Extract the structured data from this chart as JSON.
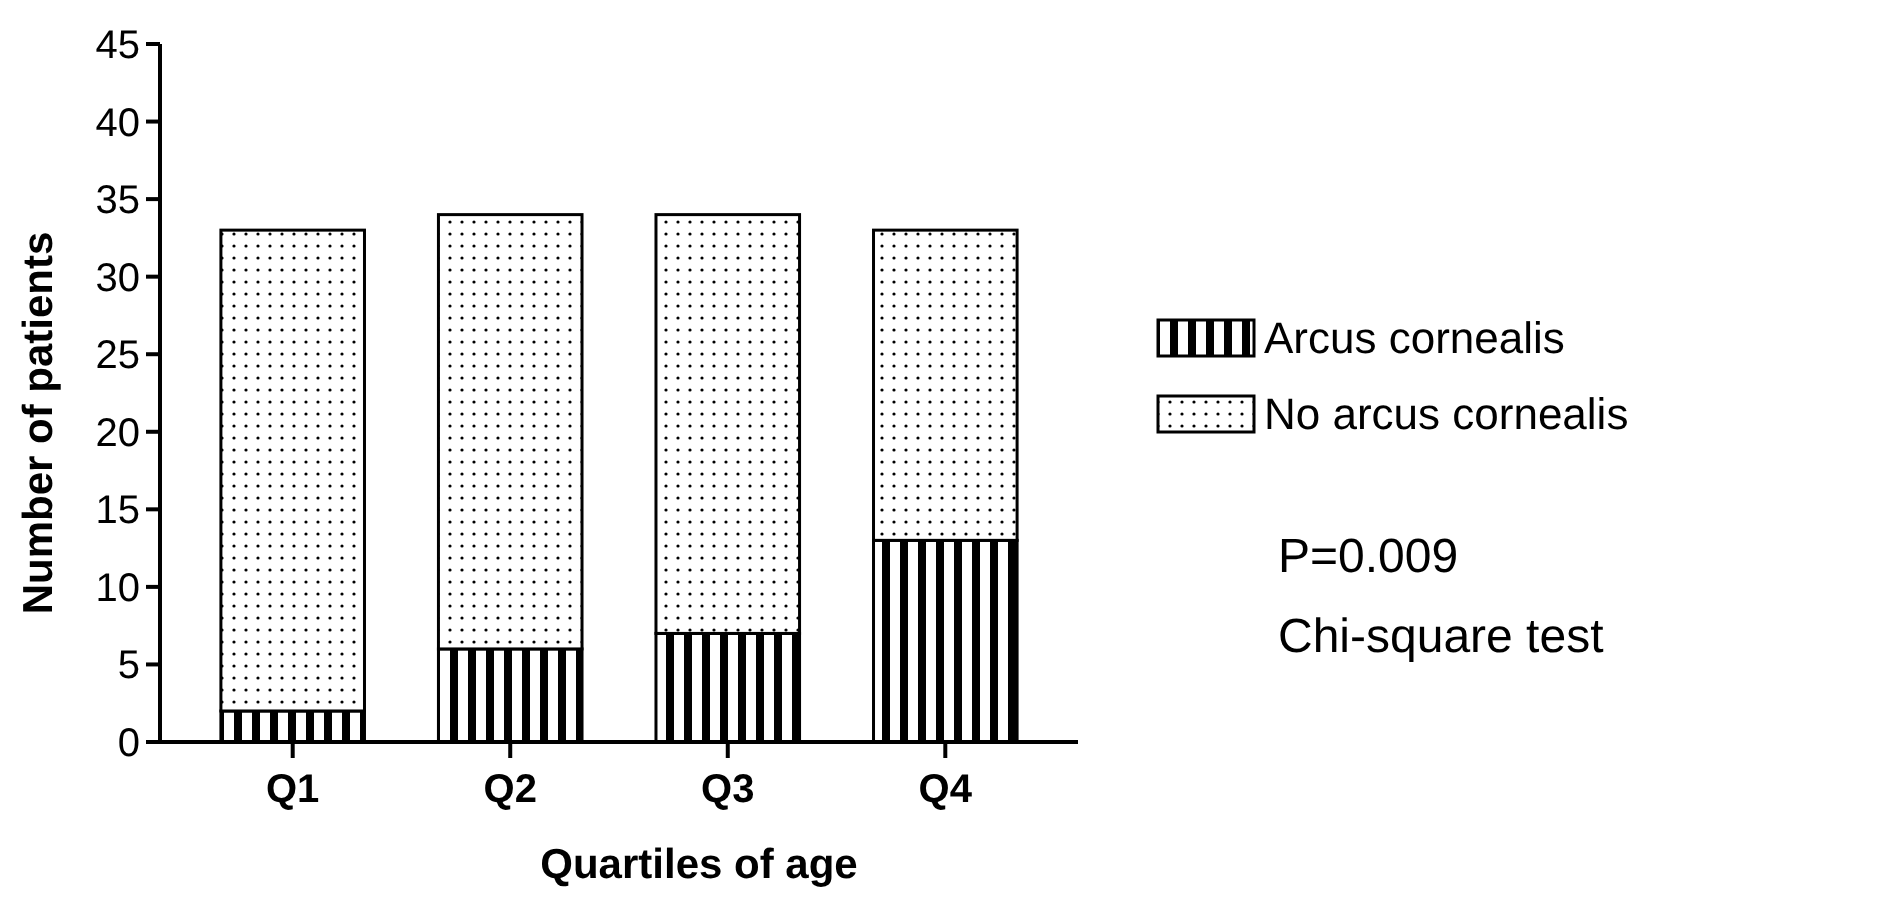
{
  "chart_data": {
    "type": "bar",
    "stacked": true,
    "xlabel": "Quartiles of age",
    "ylabel": "Number of patients",
    "categories": [
      "Q1",
      "Q2",
      "Q3",
      "Q4"
    ],
    "series": [
      {
        "name": "Arcus cornealis",
        "color": "#000000",
        "values": [
          2,
          6,
          7,
          13
        ]
      },
      {
        "name": "No arcus cornealis",
        "color": "#000000",
        "values": [
          31,
          28,
          27,
          20
        ]
      }
    ],
    "ylim": [
      0,
      45
    ],
    "yticks": [
      0,
      5,
      10,
      15,
      20,
      25,
      30,
      35,
      40,
      45
    ],
    "grid": false,
    "legend": "right",
    "annotations": [
      "P=0.009",
      "Chi-square test"
    ]
  }
}
